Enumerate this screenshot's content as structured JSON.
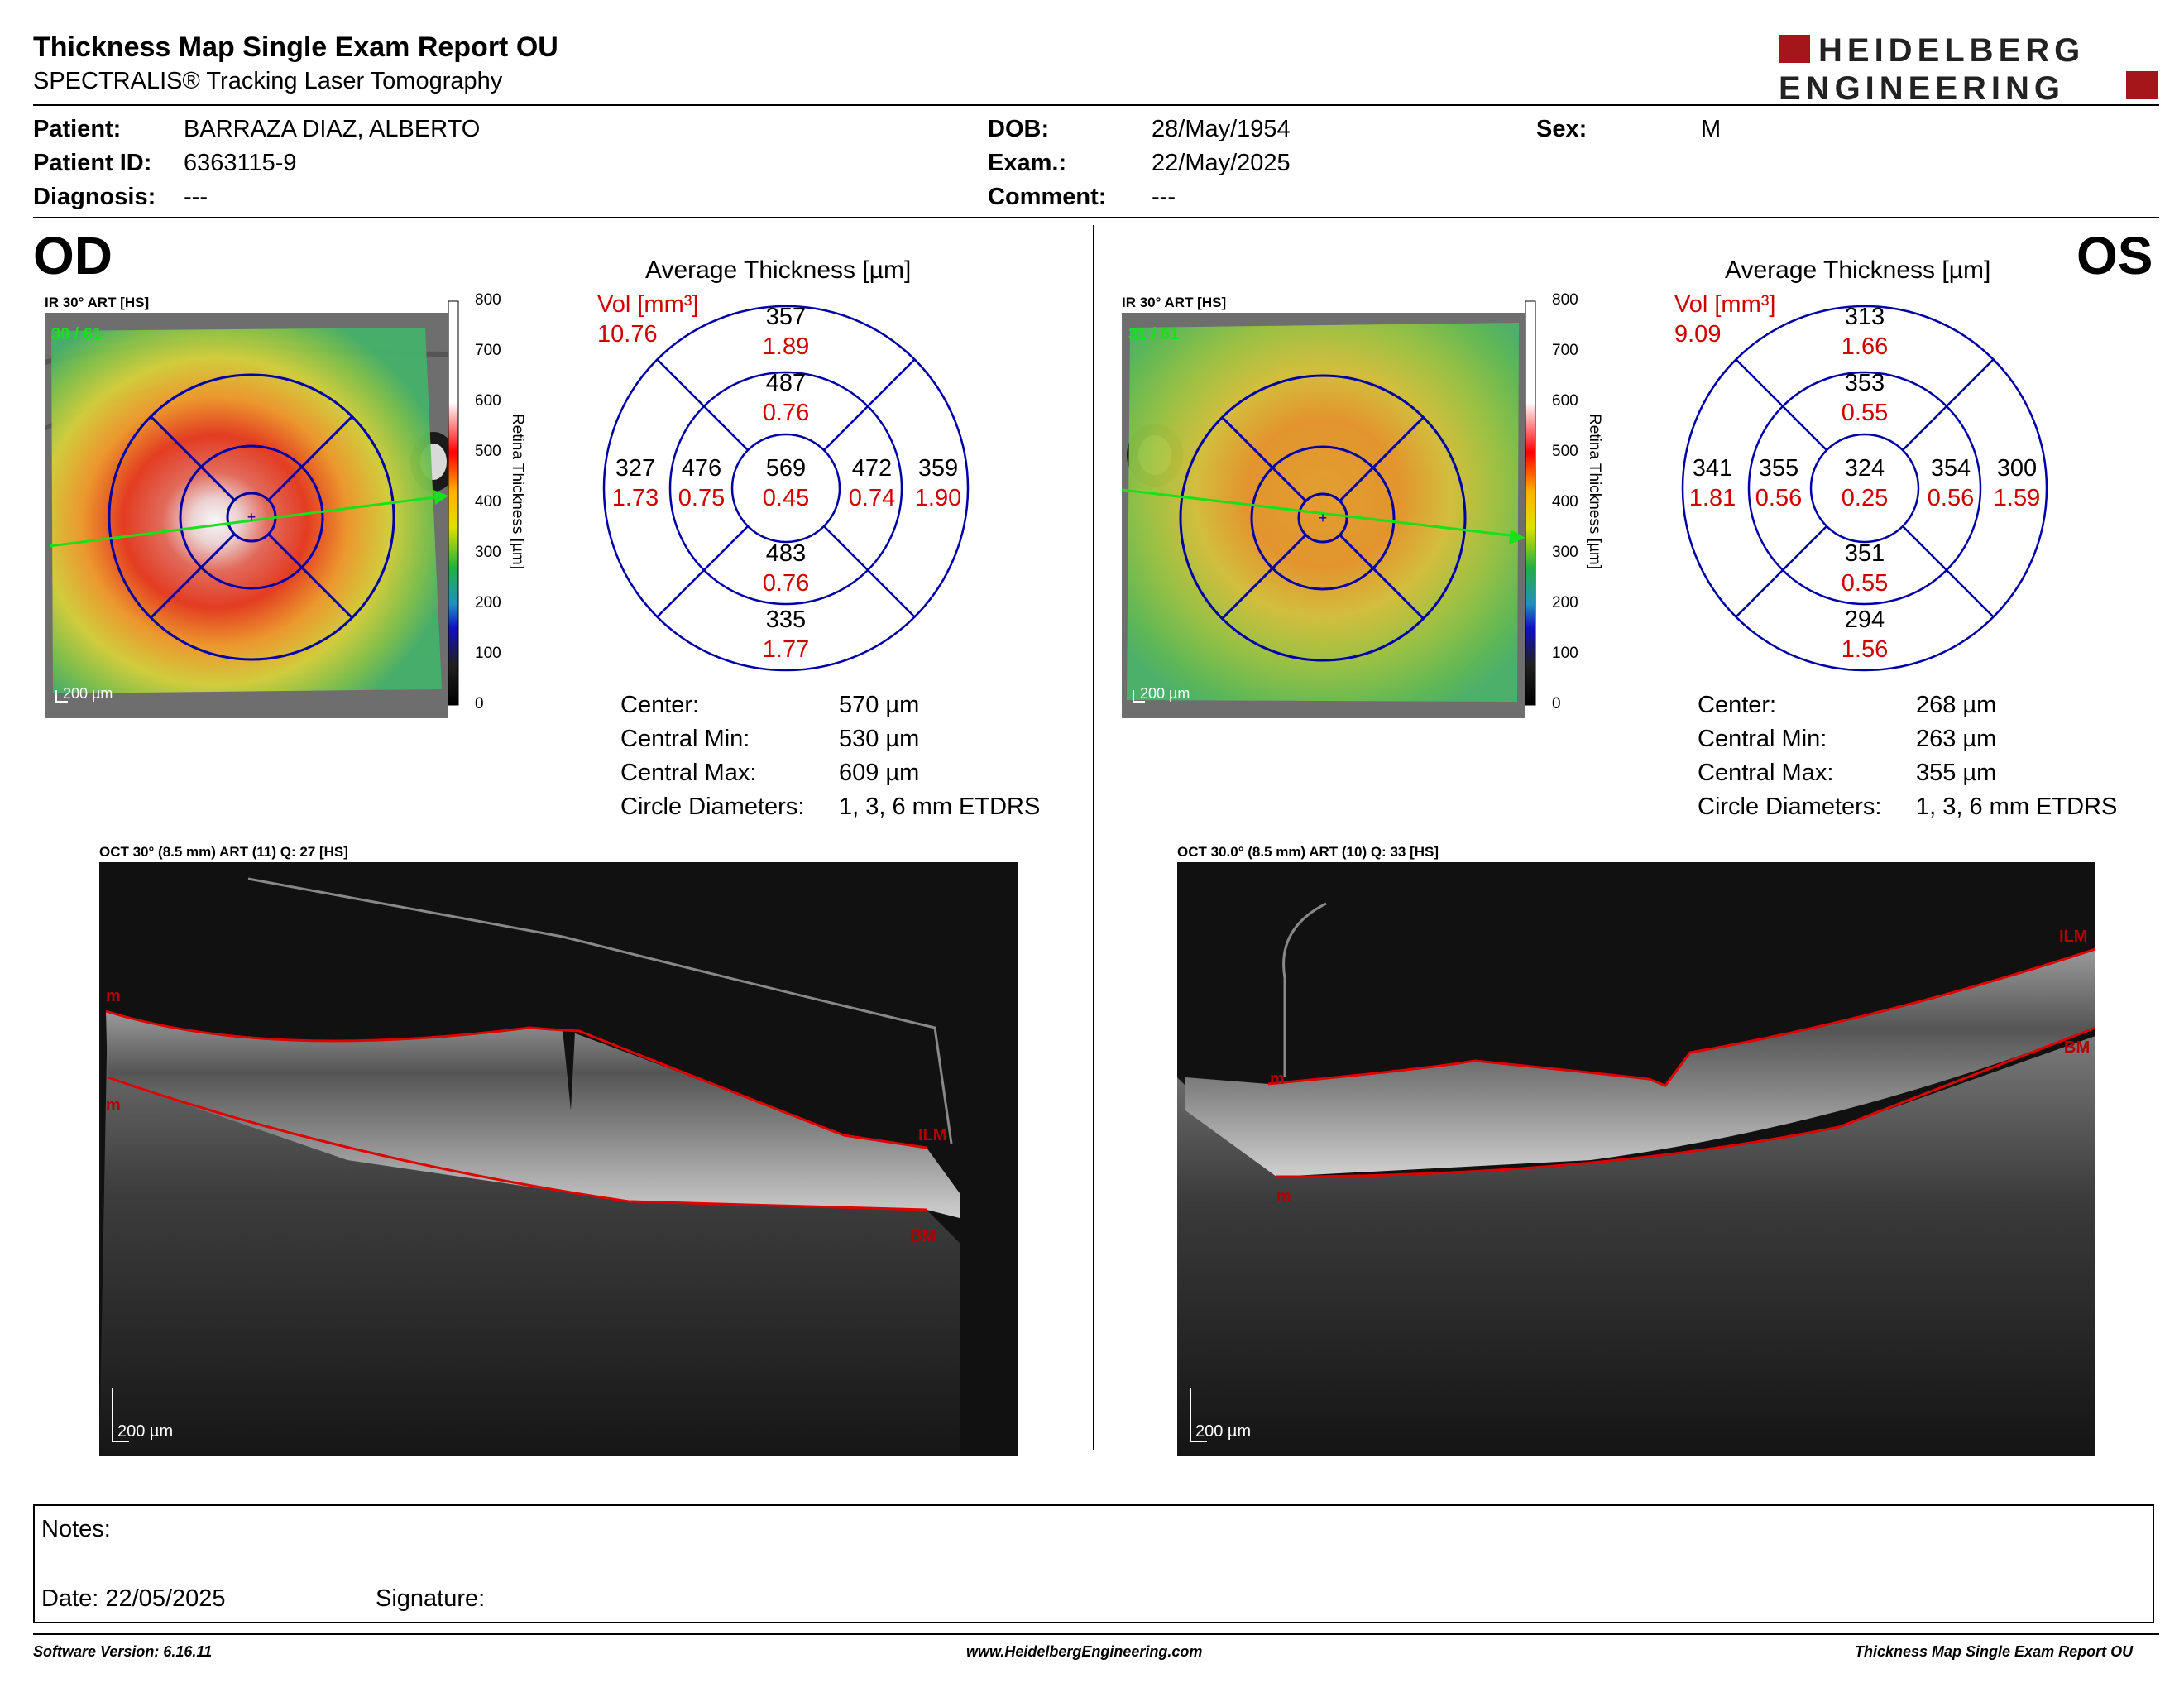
{
  "header": {
    "title": "Thickness Map Single Exam Report OU",
    "subtitle": "SPECTRALIS® Tracking Laser Tomography",
    "logo_line1": "HEIDELBERG",
    "logo_line2": "ENGINEERING"
  },
  "patient": {
    "patient_label": "Patient:",
    "patient_value": "BARRAZA DIAZ, ALBERTO",
    "id_label": "Patient ID:",
    "id_value": "6363115-9",
    "diagnosis_label": "Diagnosis:",
    "diagnosis_value": "---",
    "dob_label": "DOB:",
    "dob_value": "28/May/1954",
    "exam_label": "Exam.:",
    "exam_value": "22/May/2025",
    "comment_label": "Comment:",
    "comment_value": "---",
    "sex_label": "Sex:",
    "sex_value": "M"
  },
  "colorbar": {
    "ticks": [
      "800",
      "700",
      "600",
      "500",
      "400",
      "300",
      "200",
      "100",
      "0"
    ],
    "title": "Retina Thickness [µm]"
  },
  "od": {
    "eye": "OD",
    "ir_caption": "IR 30° ART [HS]",
    "ir_overlay": "30 / 61",
    "ir_scale": "200 µm",
    "avg_title": "Average Thickness [µm]",
    "vol_label": "Vol [mm³]",
    "vol_total": "10.76",
    "sectors": {
      "center": {
        "t": "569",
        "v": "0.45"
      },
      "inner_sup": {
        "t": "487",
        "v": "0.76"
      },
      "inner_inf": {
        "t": "483",
        "v": "0.76"
      },
      "inner_left": {
        "t": "476",
        "v": "0.75"
      },
      "inner_right": {
        "t": "472",
        "v": "0.74"
      },
      "outer_sup": {
        "t": "357",
        "v": "1.89"
      },
      "outer_inf": {
        "t": "335",
        "v": "1.77"
      },
      "outer_left": {
        "t": "327",
        "v": "1.73"
      },
      "outer_right": {
        "t": "359",
        "v": "1.90"
      }
    },
    "stats": [
      {
        "k": "Center:",
        "v": "570 µm"
      },
      {
        "k": "Central Min:",
        "v": "530 µm"
      },
      {
        "k": "Central Max:",
        "v": "609 µm"
      },
      {
        "k": "Circle Diameters:",
        "v": "1, 3, 6 mm ETDRS"
      }
    ],
    "oct_caption": "OCT 30° (8.5 mm) ART (11) Q: 27 [HS]",
    "oct_scale": "200 µm",
    "oct_labels": {
      "m1": "m",
      "m2": "m",
      "ilm": "ILM",
      "bm": "BM"
    }
  },
  "os": {
    "eye": "OS",
    "ir_caption": "IR 30° ART [HS]",
    "ir_overlay": "31 / 61",
    "ir_scale": "200 µm",
    "avg_title": "Average Thickness [µm]",
    "vol_label": "Vol [mm³]",
    "vol_total": "9.09",
    "sectors": {
      "center": {
        "t": "324",
        "v": "0.25"
      },
      "inner_sup": {
        "t": "353",
        "v": "0.55"
      },
      "inner_inf": {
        "t": "351",
        "v": "0.55"
      },
      "inner_left": {
        "t": "355",
        "v": "0.56"
      },
      "inner_right": {
        "t": "354",
        "v": "0.56"
      },
      "outer_sup": {
        "t": "313",
        "v": "1.66"
      },
      "outer_inf": {
        "t": "294",
        "v": "1.56"
      },
      "outer_left": {
        "t": "341",
        "v": "1.81"
      },
      "outer_right": {
        "t": "300",
        "v": "1.59"
      }
    },
    "stats": [
      {
        "k": "Center:",
        "v": "268 µm"
      },
      {
        "k": "Central Min:",
        "v": "263 µm"
      },
      {
        "k": "Central Max:",
        "v": "355 µm"
      },
      {
        "k": "Circle Diameters:",
        "v": "1, 3, 6 mm ETDRS"
      }
    ],
    "oct_caption": "OCT 30.0° (8.5 mm) ART (10) Q: 33 [HS]",
    "oct_scale": "200 µm",
    "oct_labels": {
      "m1": "m",
      "m2": "m",
      "ilm": "ILM",
      "bm": "BM"
    }
  },
  "notes": {
    "notes_label": "Notes:",
    "date_label": "Date: 22/05/2025",
    "signature_label": "Signature:"
  },
  "footer": {
    "software": "Software Version: 6.16.11",
    "website": "www.HeidelbergEngineering.com",
    "report_name": "Thickness Map Single Exam Report OU"
  },
  "colors": {
    "etdrs_blue": "#0000a8",
    "volume_red": "#d00000",
    "segmentation_red": "#e00000",
    "logo_red": "#a4161a"
  }
}
